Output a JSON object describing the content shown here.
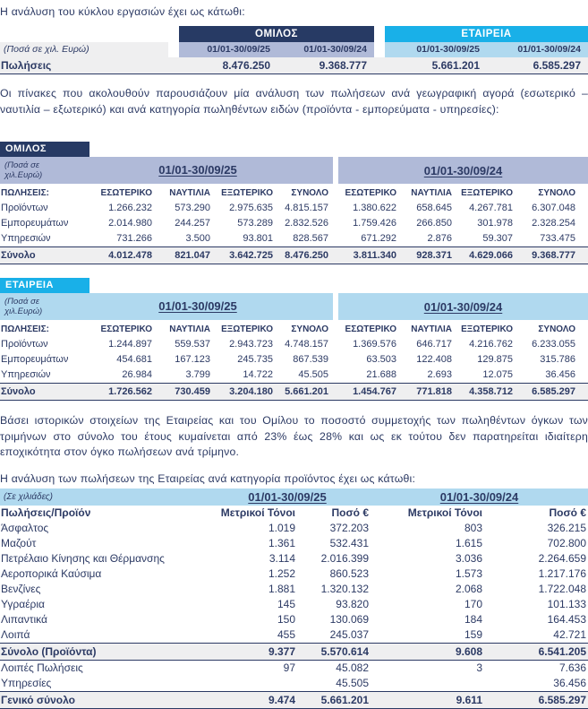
{
  "texts": {
    "intro_turnover": "Η ανάλυση του κύκλου εργασιών έχει ως κάτωθι:",
    "para_geo": "Οι πίνακες που ακολουθούν παρουσιάζουν μία ανάλυση των πωλήσεων ανά γεωγραφική αγορά (εσωτερικό –  ναυτιλία – εξωτερικό) και ανά κατηγορία πωληθέντων ειδών (προϊόντα - εμπορεύματα - υπηρεσίες):",
    "para_seasonality": "Βάσει ιστορικών στοιχείων της Εταιρείας και του Ομίλου το ποσοστό συμμετοχής των πωληθέντων όγκων των τριμήνων στο σύνολο του έτους κυμαίνεται από 23% έως 28% και ως εκ τούτου δεν παρατηρείται ιδιαίτερη εποχικότητα στον όγκο πωλήσεων ανά τρίμηνο.",
    "intro_products": "Η ανάλυση των πωλήσεων της Εταιρείας ανά κατηγορία προϊόντος έχει ως κάτωθι:"
  },
  "colors": {
    "navy": "#273a64",
    "cyan": "#19b0e8",
    "periwinkle": "#b0bad8",
    "light_cyan": "#b0d9ef",
    "row_grey": "#efeff0",
    "text": "#2c3a64"
  },
  "summary_table": {
    "amounts_label": "(Ποσά σε χιλ. Ευρώ)",
    "group_label": "ΟΜΙΛΟΣ",
    "company_label": "ΕΤΑΙΡΕΙΑ",
    "periods": [
      "01/01-30/09/25",
      "01/01-30/09/24"
    ],
    "row_label": "Πωλήσεις",
    "values": [
      "8.476.250",
      "9.368.777",
      "5.661.201",
      "6.585.297"
    ]
  },
  "group_table": {
    "tag": "ΟΜΙΛΟΣ",
    "amounts_label": "(Ποσά σε χιλ.Ευρώ)",
    "periods": [
      "01/01-30/09/25",
      "01/01-30/09/24"
    ],
    "sales_header": "ΠΩΛΗΣΕΙΣ:",
    "column_headers": [
      "ΕΣΩΤΕΡΙΚΟ",
      "ΝΑΥΤΙΛΙΑ",
      "ΕΞΩΤΕΡΙΚΟ",
      "ΣΥΝΟΛΟ"
    ],
    "rows": [
      {
        "label": "Προϊόντων",
        "values": [
          "1.266.232",
          "573.290",
          "2.975.635",
          "4.815.157",
          "1.380.622",
          "658.645",
          "4.267.781",
          "6.307.048"
        ],
        "total": false
      },
      {
        "label": "Εμπορευμάτων",
        "values": [
          "2.014.980",
          "244.257",
          "573.289",
          "2.832.526",
          "1.759.426",
          "266.850",
          "301.978",
          "2.328.254"
        ],
        "total": false
      },
      {
        "label": "Υπηρεσιών",
        "values": [
          "731.266",
          "3.500",
          "93.801",
          "828.567",
          "671.292",
          "2.876",
          "59.307",
          "733.475"
        ],
        "total": false
      },
      {
        "label": "Σύνολο",
        "values": [
          "4.012.478",
          "821.047",
          "3.642.725",
          "8.476.250",
          "3.811.340",
          "928.371",
          "4.629.066",
          "9.368.777"
        ],
        "total": true
      }
    ]
  },
  "company_table": {
    "tag": "ΕΤΑΙΡΕΙΑ",
    "amounts_label": "(Ποσά σε χιλ.Ευρώ)",
    "periods": [
      "01/01-30/09/25",
      "01/01-30/09/24"
    ],
    "sales_header": "ΠΩΛΗΣΕΙΣ:",
    "column_headers": [
      "ΕΣΩΤΕΡΙΚΟ",
      "ΝΑΥΤΙΛΙΑ",
      "ΕΞΩΤΕΡΙΚΟ",
      "ΣΥΝΟΛΟ"
    ],
    "rows": [
      {
        "label": "Προϊόντων",
        "values": [
          "1.244.897",
          "559.537",
          "2.943.723",
          "4.748.157",
          "1.369.576",
          "646.717",
          "4.216.762",
          "6.233.055"
        ],
        "total": false
      },
      {
        "label": "Εμπορευμάτων",
        "values": [
          "454.681",
          "167.123",
          "245.735",
          "867.539",
          "63.503",
          "122.408",
          "129.875",
          "315.786"
        ],
        "total": false
      },
      {
        "label": "Υπηρεσιών",
        "values": [
          "26.984",
          "3.799",
          "14.722",
          "45.505",
          "21.688",
          "2.693",
          "12.075",
          "36.456"
        ],
        "total": false
      },
      {
        "label": "Σύνολο",
        "values": [
          "1.726.562",
          "730.459",
          "3.204.180",
          "5.661.201",
          "1.454.767",
          "771.818",
          "4.358.712",
          "6.585.297"
        ],
        "total": true
      }
    ]
  },
  "product_table": {
    "units_label": "(Σε χιλιάδες)",
    "periods": [
      "01/01-30/09/25",
      "01/01-30/09/24"
    ],
    "label_header": "Πωλήσεις/Προϊόν",
    "column_headers": [
      "Μετρικοί Τόνοι",
      "Ποσό €",
      "Μετρικοί Τόνοι",
      "Ποσό €"
    ],
    "rows": [
      {
        "label": "Άσφαλτος",
        "values": [
          "1.019",
          "372.203",
          "803",
          "326.215"
        ],
        "total": false
      },
      {
        "label": "Μαζούτ",
        "values": [
          "1.361",
          "532.431",
          "1.615",
          "702.800"
        ],
        "total": false
      },
      {
        "label": "Πετρέλαιο Κίνησης και Θέρμανσης",
        "values": [
          "3.114",
          "2.016.399",
          "3.036",
          "2.264.659"
        ],
        "total": false
      },
      {
        "label": "Αεροπορικά Καύσιμα",
        "values": [
          "1.252",
          "860.523",
          "1.573",
          "1.217.176"
        ],
        "total": false
      },
      {
        "label": "Βενζίνες",
        "values": [
          "1.881",
          "1.320.132",
          "2.068",
          "1.722.048"
        ],
        "total": false
      },
      {
        "label": "Υγραέρια",
        "values": [
          "145",
          "93.820",
          "170",
          "101.133"
        ],
        "total": false
      },
      {
        "label": "Λιπαντικά",
        "values": [
          "150",
          "130.069",
          "184",
          "164.453"
        ],
        "total": false
      },
      {
        "label": "Λοιπά",
        "values": [
          "455",
          "245.037",
          "159",
          "42.721"
        ],
        "total": false
      },
      {
        "label": "Σύνολο (Προϊόντα)",
        "values": [
          "9.377",
          "5.570.614",
          "9.608",
          "6.541.205"
        ],
        "total": true
      },
      {
        "label": "Λοιπές Πωλήσεις",
        "values": [
          "97",
          "45.082",
          "3",
          "7.636"
        ],
        "total": false
      },
      {
        "label": "Υπηρεσίες",
        "values": [
          "",
          "45.505",
          "",
          "36.456"
        ],
        "total": false
      },
      {
        "label": "Γενικό σύνολο",
        "values": [
          "9.474",
          "5.661.201",
          "9.611",
          "6.585.297"
        ],
        "total": true
      }
    ]
  }
}
